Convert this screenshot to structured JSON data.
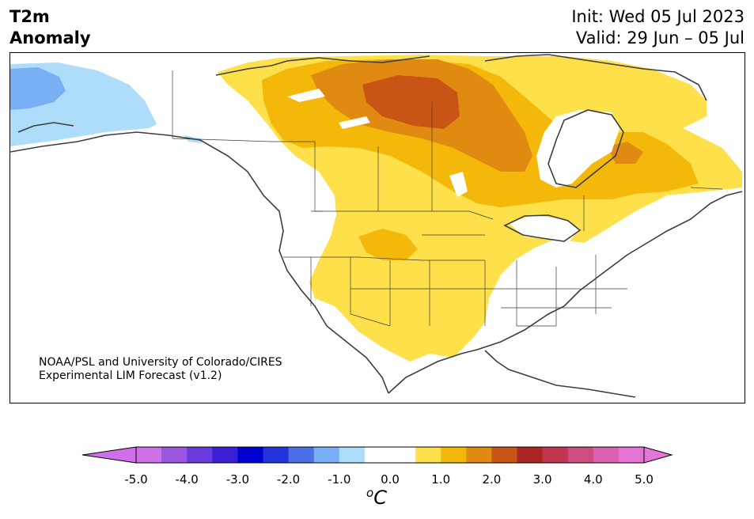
{
  "title": {
    "line1": "T2m",
    "line2": "Anomaly"
  },
  "subtitle": {
    "init": "Init: Wed 05 Jul 2023",
    "valid": "Valid: 29 Jun – 05 Jul"
  },
  "credit": {
    "line1": "NOAA/PSL and University of Colorado/CIRES",
    "line2": "Experimental LIM Forecast (v1.2)"
  },
  "colorbar": {
    "ticks": [
      "-5.0",
      "-4.0",
      "-3.0",
      "-2.0",
      "-1.0",
      "0.0",
      "1.0",
      "2.0",
      "3.0",
      "4.0",
      "5.0"
    ],
    "unit_base": "C",
    "unit_sup": "o",
    "colors": [
      "#d070e8",
      "#9b55df",
      "#6a3bdc",
      "#3a1fd6",
      "#0000d0",
      "#2433db",
      "#4a6fe6",
      "#79b0f5",
      "#aedcfb",
      "#ffffff",
      "#ffffff",
      "#fde04a",
      "#f4b80b",
      "#e08a12",
      "#c85415",
      "#ad2626",
      "#c23650",
      "#cf4c7e",
      "#db62b0",
      "#e675d8"
    ],
    "under_color": "#d070e8",
    "over_color": "#e675d8"
  },
  "palette": {
    "land": "#ffffff",
    "coast": "#3d3d3d",
    "anom_neg_1": "#aedcfb",
    "anom_neg_15": "#79b0f5",
    "anom_pos_1": "#fde04a",
    "anom_pos_15": "#f4b80b",
    "anom_pos_2": "#e08a12",
    "anom_pos_25": "#c85415"
  }
}
